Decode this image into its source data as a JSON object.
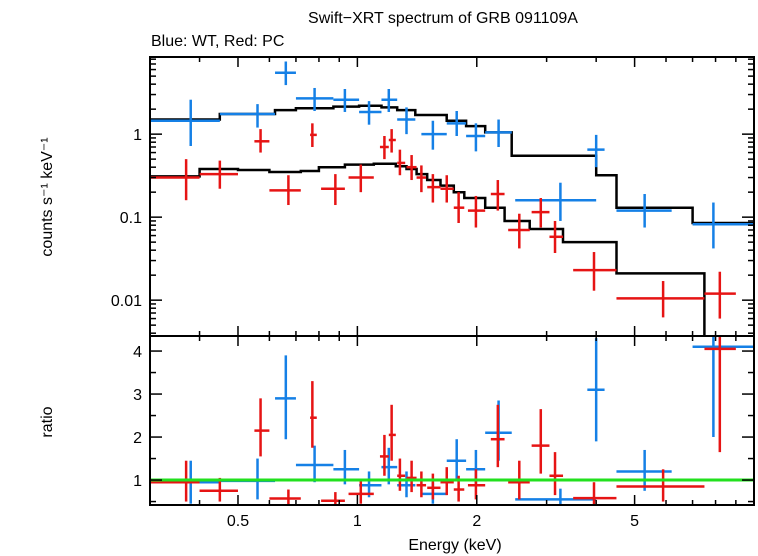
{
  "title": "Swift−XRT spectrum of GRB 091109A",
  "subtitle": "Blue: WT, Red: PC",
  "colors": {
    "wt": "#1580e6",
    "pc": "#e61414",
    "model": "#000000",
    "unity": "#22e01e"
  },
  "chart_data": [
    {
      "type": "scatter",
      "panel": "spectrum",
      "x_scale": "log",
      "y_scale": "log",
      "xlim": [
        0.3,
        10
      ],
      "ylim": [
        0.0037,
        8.5
      ],
      "ylabel": "counts s⁻¹ keV⁻¹",
      "yticks": [
        {
          "value": 1,
          "label": "1"
        },
        {
          "value": 0.1,
          "label": "0.1"
        },
        {
          "value": 0.01,
          "label": "0.01"
        }
      ],
      "series": [
        {
          "id": "wt",
          "points": [
            {
              "x": 0.38,
              "xlo": 0.3,
              "xhi": 0.45,
              "y": 1.45,
              "ylo": 0.72,
              "yhi": 2.6
            },
            {
              "x": 0.56,
              "xlo": 0.45,
              "xhi": 0.62,
              "y": 1.75,
              "ylo": 1.2,
              "yhi": 2.3
            },
            {
              "x": 0.66,
              "xlo": 0.62,
              "xhi": 0.7,
              "y": 5.5,
              "ylo": 3.9,
              "yhi": 7.5
            },
            {
              "x": 0.78,
              "xlo": 0.7,
              "xhi": 0.87,
              "y": 2.7,
              "ylo": 1.9,
              "yhi": 3.6
            },
            {
              "x": 0.93,
              "xlo": 0.87,
              "xhi": 1.01,
              "y": 2.6,
              "ylo": 1.85,
              "yhi": 3.5
            },
            {
              "x": 1.07,
              "xlo": 1.01,
              "xhi": 1.15,
              "y": 1.85,
              "ylo": 1.3,
              "yhi": 2.5
            },
            {
              "x": 1.2,
              "xlo": 1.15,
              "xhi": 1.26,
              "y": 2.6,
              "ylo": 1.85,
              "yhi": 3.5
            },
            {
              "x": 1.33,
              "xlo": 1.26,
              "xhi": 1.4,
              "y": 1.5,
              "ylo": 1.0,
              "yhi": 2.1
            },
            {
              "x": 1.55,
              "xlo": 1.45,
              "xhi": 1.68,
              "y": 1.0,
              "ylo": 0.65,
              "yhi": 1.45
            },
            {
              "x": 1.78,
              "xlo": 1.68,
              "xhi": 1.88,
              "y": 1.35,
              "ylo": 0.95,
              "yhi": 1.9
            },
            {
              "x": 1.99,
              "xlo": 1.88,
              "xhi": 2.1,
              "y": 0.95,
              "ylo": 0.62,
              "yhi": 1.35
            },
            {
              "x": 2.27,
              "xlo": 2.1,
              "xhi": 2.45,
              "y": 1.05,
              "ylo": 0.7,
              "yhi": 1.5
            },
            {
              "x": 3.25,
              "xlo": 2.5,
              "xhi": 4.0,
              "y": 0.16,
              "ylo": 0.09,
              "yhi": 0.26
            },
            {
              "x": 4.0,
              "xlo": 3.8,
              "xhi": 4.2,
              "y": 0.65,
              "ylo": 0.4,
              "yhi": 0.98
            },
            {
              "x": 5.3,
              "xlo": 4.5,
              "xhi": 6.2,
              "y": 0.12,
              "ylo": 0.075,
              "yhi": 0.19
            },
            {
              "x": 7.9,
              "xlo": 7.0,
              "xhi": 10.0,
              "y": 0.082,
              "ylo": 0.042,
              "yhi": 0.15
            }
          ]
        },
        {
          "id": "pc",
          "points": [
            {
              "x": 0.37,
              "xlo": 0.3,
              "xhi": 0.4,
              "y": 0.3,
              "ylo": 0.16,
              "yhi": 0.5
            },
            {
              "x": 0.45,
              "xlo": 0.4,
              "xhi": 0.5,
              "y": 0.33,
              "ylo": 0.22,
              "yhi": 0.48
            },
            {
              "x": 0.57,
              "xlo": 0.55,
              "xhi": 0.6,
              "y": 0.82,
              "ylo": 0.6,
              "yhi": 1.15
            },
            {
              "x": 0.67,
              "xlo": 0.6,
              "xhi": 0.72,
              "y": 0.21,
              "ylo": 0.14,
              "yhi": 0.32
            },
            {
              "x": 0.77,
              "xlo": 0.76,
              "xhi": 0.79,
              "y": 0.98,
              "ylo": 0.7,
              "yhi": 1.35
            },
            {
              "x": 0.88,
              "xlo": 0.81,
              "xhi": 0.93,
              "y": 0.22,
              "ylo": 0.14,
              "yhi": 0.33
            },
            {
              "x": 1.02,
              "xlo": 0.95,
              "xhi": 1.1,
              "y": 0.3,
              "ylo": 0.2,
              "yhi": 0.43
            },
            {
              "x": 1.17,
              "xlo": 1.14,
              "xhi": 1.2,
              "y": 0.7,
              "ylo": 0.5,
              "yhi": 0.95
            },
            {
              "x": 1.22,
              "xlo": 1.2,
              "xhi": 1.25,
              "y": 0.85,
              "ylo": 0.6,
              "yhi": 1.15
            },
            {
              "x": 1.28,
              "xlo": 1.26,
              "xhi": 1.32,
              "y": 0.45,
              "ylo": 0.32,
              "yhi": 0.65
            },
            {
              "x": 1.37,
              "xlo": 1.33,
              "xhi": 1.41,
              "y": 0.4,
              "ylo": 0.28,
              "yhi": 0.56
            },
            {
              "x": 1.45,
              "xlo": 1.41,
              "xhi": 1.49,
              "y": 0.3,
              "ylo": 0.2,
              "yhi": 0.42
            },
            {
              "x": 1.55,
              "xlo": 1.5,
              "xhi": 1.62,
              "y": 0.23,
              "ylo": 0.15,
              "yhi": 0.33
            },
            {
              "x": 1.68,
              "xlo": 1.62,
              "xhi": 1.75,
              "y": 0.22,
              "ylo": 0.15,
              "yhi": 0.32
            },
            {
              "x": 1.8,
              "xlo": 1.75,
              "xhi": 1.86,
              "y": 0.13,
              "ylo": 0.085,
              "yhi": 0.2
            },
            {
              "x": 1.99,
              "xlo": 1.9,
              "xhi": 2.1,
              "y": 0.12,
              "ylo": 0.075,
              "yhi": 0.18
            },
            {
              "x": 2.26,
              "xlo": 2.17,
              "xhi": 2.35,
              "y": 0.19,
              "ylo": 0.12,
              "yhi": 0.28
            },
            {
              "x": 2.56,
              "xlo": 2.4,
              "xhi": 2.72,
              "y": 0.07,
              "ylo": 0.042,
              "yhi": 0.11
            },
            {
              "x": 2.9,
              "xlo": 2.75,
              "xhi": 3.05,
              "y": 0.115,
              "ylo": 0.075,
              "yhi": 0.17
            },
            {
              "x": 3.15,
              "xlo": 3.05,
              "xhi": 3.3,
              "y": 0.058,
              "ylo": 0.037,
              "yhi": 0.09
            },
            {
              "x": 3.95,
              "xlo": 3.5,
              "xhi": 4.5,
              "y": 0.023,
              "ylo": 0.013,
              "yhi": 0.038
            },
            {
              "x": 5.9,
              "xlo": 4.5,
              "xhi": 7.5,
              "y": 0.0105,
              "ylo": 0.0062,
              "yhi": 0.017
            },
            {
              "x": 8.2,
              "xlo": 7.5,
              "xhi": 9.0,
              "y": 0.012,
              "ylo": 0.006,
              "yhi": 0.022
            }
          ]
        }
      ],
      "models": [
        {
          "id": "wt-model",
          "steps": [
            [
              0.3,
              1.5
            ],
            [
              0.4,
              1.5
            ],
            [
              0.45,
              1.75
            ],
            [
              0.62,
              1.95
            ],
            [
              0.7,
              2.05
            ],
            [
              0.87,
              2.15
            ],
            [
              1.01,
              2.2
            ],
            [
              1.15,
              2.1
            ],
            [
              1.26,
              1.95
            ],
            [
              1.4,
              1.7
            ],
            [
              1.68,
              1.45
            ],
            [
              1.88,
              1.25
            ],
            [
              2.1,
              1.05
            ],
            [
              2.45,
              0.55
            ],
            [
              4.0,
              0.32
            ],
            [
              4.5,
              0.13
            ],
            [
              7.0,
              0.085
            ],
            [
              10.0,
              0.085
            ]
          ]
        },
        {
          "id": "pc-model",
          "steps": [
            [
              0.3,
              0.31
            ],
            [
              0.4,
              0.38
            ],
            [
              0.5,
              0.37
            ],
            [
              0.6,
              0.35
            ],
            [
              0.72,
              0.36
            ],
            [
              0.8,
              0.4
            ],
            [
              0.93,
              0.43
            ],
            [
              1.1,
              0.44
            ],
            [
              1.25,
              0.41
            ],
            [
              1.33,
              0.38
            ],
            [
              1.41,
              0.33
            ],
            [
              1.5,
              0.28
            ],
            [
              1.62,
              0.24
            ],
            [
              1.75,
              0.2
            ],
            [
              1.86,
              0.17
            ],
            [
              2.1,
              0.13
            ],
            [
              2.35,
              0.09
            ],
            [
              2.72,
              0.072
            ],
            [
              3.3,
              0.05
            ],
            [
              4.5,
              0.021
            ],
            [
              6.0,
              0.021
            ],
            [
              7.5,
              0.003
            ],
            [
              10.0,
              0.003
            ]
          ]
        }
      ]
    },
    {
      "type": "scatter",
      "panel": "ratio",
      "x_scale": "log",
      "xlim": [
        0.3,
        10
      ],
      "ylim": [
        0.42,
        4.35
      ],
      "xlabel": "Energy (keV)",
      "ylabel": "ratio",
      "xticks": [
        {
          "value": 0.5,
          "label": "0.5"
        },
        {
          "value": 1,
          "label": "1"
        },
        {
          "value": 2,
          "label": "2"
        },
        {
          "value": 5,
          "label": "5"
        }
      ],
      "yticks": [
        {
          "value": 1,
          "label": "1"
        },
        {
          "value": 2,
          "label": "2"
        },
        {
          "value": 3,
          "label": "3"
        },
        {
          "value": 4,
          "label": "4"
        }
      ],
      "unity_line": 1,
      "series": [
        {
          "id": "wt",
          "points": [
            {
              "x": 0.38,
              "xlo": 0.3,
              "xhi": 0.45,
              "y": 0.95,
              "ylo": 0.45,
              "yhi": 1.45
            },
            {
              "x": 0.56,
              "xlo": 0.45,
              "xhi": 0.62,
              "y": 0.98,
              "ylo": 0.55,
              "yhi": 1.5
            },
            {
              "x": 0.66,
              "xlo": 0.62,
              "xhi": 0.7,
              "y": 2.9,
              "ylo": 1.95,
              "yhi": 3.9
            },
            {
              "x": 0.78,
              "xlo": 0.7,
              "xhi": 0.87,
              "y": 1.35,
              "ylo": 0.95,
              "yhi": 1.8
            },
            {
              "x": 0.93,
              "xlo": 0.87,
              "xhi": 1.01,
              "y": 1.25,
              "ylo": 0.9,
              "yhi": 1.7
            },
            {
              "x": 1.07,
              "xlo": 1.01,
              "xhi": 1.15,
              "y": 0.88,
              "ylo": 0.6,
              "yhi": 1.2
            },
            {
              "x": 1.2,
              "xlo": 1.15,
              "xhi": 1.26,
              "y": 1.3,
              "ylo": 0.9,
              "yhi": 1.75
            },
            {
              "x": 1.33,
              "xlo": 1.26,
              "xhi": 1.4,
              "y": 0.88,
              "ylo": 0.6,
              "yhi": 1.2
            },
            {
              "x": 1.55,
              "xlo": 1.45,
              "xhi": 1.68,
              "y": 0.68,
              "ylo": 0.45,
              "yhi": 0.95
            },
            {
              "x": 1.78,
              "xlo": 1.68,
              "xhi": 1.88,
              "y": 1.45,
              "ylo": 1.0,
              "yhi": 1.95
            },
            {
              "x": 1.99,
              "xlo": 1.88,
              "xhi": 2.1,
              "y": 1.25,
              "ylo": 0.85,
              "yhi": 1.7
            },
            {
              "x": 2.27,
              "xlo": 2.1,
              "xhi": 2.45,
              "y": 2.1,
              "ylo": 1.45,
              "yhi": 2.85
            },
            {
              "x": 3.25,
              "xlo": 2.5,
              "xhi": 4.0,
              "y": 0.55,
              "ylo": 0.32,
              "yhi": 0.8
            },
            {
              "x": 4.0,
              "xlo": 3.8,
              "xhi": 4.2,
              "y": 3.1,
              "ylo": 1.9,
              "yhi": 4.3
            },
            {
              "x": 5.3,
              "xlo": 4.5,
              "xhi": 6.2,
              "y": 1.2,
              "ylo": 0.75,
              "yhi": 1.7
            },
            {
              "x": 7.9,
              "xlo": 7.0,
              "xhi": 10.0,
              "y": 4.1,
              "ylo": 2.0,
              "yhi": 4.35
            }
          ]
        },
        {
          "id": "pc",
          "points": [
            {
              "x": 0.37,
              "xlo": 0.3,
              "xhi": 0.4,
              "y": 0.95,
              "ylo": 0.5,
              "yhi": 1.45
            },
            {
              "x": 0.45,
              "xlo": 0.4,
              "xhi": 0.5,
              "y": 0.75,
              "ylo": 0.5,
              "yhi": 1.05
            },
            {
              "x": 0.57,
              "xlo": 0.55,
              "xhi": 0.6,
              "y": 2.15,
              "ylo": 1.55,
              "yhi": 2.9
            },
            {
              "x": 0.67,
              "xlo": 0.6,
              "xhi": 0.72,
              "y": 0.57,
              "ylo": 0.42,
              "yhi": 0.78
            },
            {
              "x": 0.77,
              "xlo": 0.76,
              "xhi": 0.79,
              "y": 2.45,
              "ylo": 1.75,
              "yhi": 3.3
            },
            {
              "x": 0.88,
              "xlo": 0.81,
              "xhi": 0.93,
              "y": 0.52,
              "ylo": 0.42,
              "yhi": 0.72
            },
            {
              "x": 1.02,
              "xlo": 0.95,
              "xhi": 1.1,
              "y": 0.68,
              "ylo": 0.45,
              "yhi": 0.98
            },
            {
              "x": 1.17,
              "xlo": 1.14,
              "xhi": 1.2,
              "y": 1.55,
              "ylo": 1.1,
              "yhi": 2.05
            },
            {
              "x": 1.22,
              "xlo": 1.2,
              "xhi": 1.25,
              "y": 2.05,
              "ylo": 1.45,
              "yhi": 2.75
            },
            {
              "x": 1.28,
              "xlo": 1.26,
              "xhi": 1.32,
              "y": 1.1,
              "ylo": 0.75,
              "yhi": 1.5
            },
            {
              "x": 1.37,
              "xlo": 1.33,
              "xhi": 1.41,
              "y": 1.05,
              "ylo": 0.72,
              "yhi": 1.45
            },
            {
              "x": 1.45,
              "xlo": 1.41,
              "xhi": 1.49,
              "y": 0.88,
              "ylo": 0.6,
              "yhi": 1.2
            },
            {
              "x": 1.55,
              "xlo": 1.5,
              "xhi": 1.62,
              "y": 0.82,
              "ylo": 0.55,
              "yhi": 1.15
            },
            {
              "x": 1.68,
              "xlo": 1.62,
              "xhi": 1.75,
              "y": 0.95,
              "ylo": 0.65,
              "yhi": 1.3
            },
            {
              "x": 1.8,
              "xlo": 1.75,
              "xhi": 1.86,
              "y": 0.78,
              "ylo": 0.5,
              "yhi": 1.1
            },
            {
              "x": 1.99,
              "xlo": 1.9,
              "xhi": 2.1,
              "y": 0.88,
              "ylo": 0.55,
              "yhi": 1.25
            },
            {
              "x": 2.26,
              "xlo": 2.17,
              "xhi": 2.35,
              "y": 1.95,
              "ylo": 1.3,
              "yhi": 2.75
            },
            {
              "x": 2.56,
              "xlo": 2.4,
              "xhi": 2.72,
              "y": 0.95,
              "ylo": 0.55,
              "yhi": 1.45
            },
            {
              "x": 2.9,
              "xlo": 2.75,
              "xhi": 3.05,
              "y": 1.8,
              "ylo": 1.15,
              "yhi": 2.65
            },
            {
              "x": 3.15,
              "xlo": 3.05,
              "xhi": 3.3,
              "y": 1.1,
              "ylo": 0.65,
              "yhi": 1.65
            },
            {
              "x": 3.95,
              "xlo": 3.5,
              "xhi": 4.5,
              "y": 0.58,
              "ylo": 0.42,
              "yhi": 0.95
            },
            {
              "x": 5.9,
              "xlo": 4.5,
              "xhi": 7.5,
              "y": 0.85,
              "ylo": 0.5,
              "yhi": 1.25
            },
            {
              "x": 8.2,
              "xlo": 7.5,
              "xhi": 9.0,
              "y": 4.05,
              "ylo": 1.65,
              "yhi": 4.35
            }
          ]
        }
      ]
    }
  ]
}
